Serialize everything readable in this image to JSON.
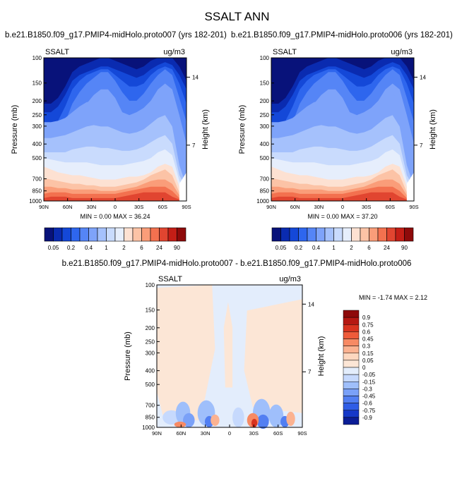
{
  "title": "SSALT ANN",
  "panels": [
    {
      "case_title": "b.e21.B1850.f09_g17.PMIP4-midHolo.proto007 (yrs 182-201)",
      "var_label": "SSALT",
      "units": "ug/m3",
      "stats": "MIN =   0.00  MAX =  36.24"
    },
    {
      "case_title": "b.e21.B1850.f09_g17.PMIP4-midHolo.proto006 (yrs 182-201)",
      "var_label": "SSALT",
      "units": "ug/m3",
      "stats": "MIN =   0.00  MAX =  37.20"
    },
    {
      "case_title": "b.e21.B1850.f09_g17.PMIP4-midHolo.proto007 - b.e21.B1850.f09_g17.PMIP4-midHolo.proto006",
      "var_label": "SSALT",
      "units": "ug/m3",
      "stats": "MIN =  -1.74  MAX =   2.12"
    }
  ],
  "chart_data": [
    {
      "type": "heatmap",
      "title": "b.e21.B1850.f09_g17.PMIP4-midHolo.proto007 (yrs 182-201)",
      "xlabel": "",
      "ylabel": "Pressure (mb)",
      "ylabel_right": "Height (km)",
      "x_ticks": [
        "90N",
        "60N",
        "30N",
        "0",
        "30S",
        "60S",
        "90S"
      ],
      "y_ticks": [
        "100",
        "150",
        "200",
        "250",
        "300",
        "400",
        "500",
        "700",
        "850",
        "1000"
      ],
      "y_scale": "log",
      "ylim": [
        1000,
        100
      ],
      "right_ticks": [
        "14",
        "7"
      ],
      "color_levels": [
        "0.05",
        "0.2",
        "0.4",
        "1",
        "2",
        "6",
        "24",
        "90"
      ],
      "min": 0.0,
      "max": 36.24
    },
    {
      "type": "heatmap",
      "title": "b.e21.B1850.f09_g17.PMIP4-midHolo.proto006 (yrs 182-201)",
      "xlabel": "",
      "ylabel": "Pressure (mb)",
      "ylabel_right": "Height (km)",
      "x_ticks": [
        "90N",
        "60N",
        "30N",
        "0",
        "30S",
        "60S",
        "90S"
      ],
      "y_ticks": [
        "100",
        "150",
        "200",
        "250",
        "300",
        "400",
        "500",
        "700",
        "850",
        "1000"
      ],
      "y_scale": "log",
      "ylim": [
        1000,
        100
      ],
      "right_ticks": [
        "14",
        "7"
      ],
      "color_levels": [
        "0.05",
        "0.2",
        "0.4",
        "1",
        "2",
        "6",
        "24",
        "90"
      ],
      "min": 0.0,
      "max": 37.2
    },
    {
      "type": "heatmap",
      "title": "b.e21.B1850.f09_g17.PMIP4-midHolo.proto007 - b.e21.B1850.f09_g17.PMIP4-midHolo.proto006",
      "xlabel": "",
      "ylabel": "Pressure (mb)",
      "ylabel_right": "Height (km)",
      "x_ticks": [
        "90N",
        "60N",
        "30N",
        "0",
        "30S",
        "60S",
        "90S"
      ],
      "y_ticks": [
        "100",
        "150",
        "200",
        "250",
        "300",
        "400",
        "500",
        "700",
        "850",
        "1000"
      ],
      "y_scale": "log",
      "ylim": [
        1000,
        100
      ],
      "right_ticks": [
        "14",
        "7"
      ],
      "color_levels": [
        "0.9",
        "0.75",
        "0.6",
        "0.45",
        "0.3",
        "0.15",
        "0.05",
        "0",
        "-0.05",
        "-0.15",
        "-0.3",
        "-0.45",
        "-0.6",
        "-0.75",
        "-0.9"
      ],
      "min": -1.74,
      "max": 2.12
    }
  ],
  "colors": {
    "abs_palette": [
      "#08127a",
      "#0a2bb0",
      "#1448d8",
      "#2e66ee",
      "#5585f6",
      "#7ea3fa",
      "#a5c1fc",
      "#c9dbfd",
      "#e6eefc",
      "#fde1d2",
      "#fcc3a6",
      "#fa9d79",
      "#f3714f",
      "#e14530",
      "#c41e16",
      "#8e0a0a"
    ],
    "diff_palette": [
      "#8e0a0a",
      "#b51812",
      "#d8331f",
      "#ee5b3a",
      "#f78a64",
      "#fbb291",
      "#fdd7bf",
      "#fce6d6",
      "#e3edfc",
      "#c6d9fd",
      "#9fbffb",
      "#7aa1f8",
      "#527ff2",
      "#2f5de6",
      "#1538c8",
      "#0b1d96"
    ]
  }
}
